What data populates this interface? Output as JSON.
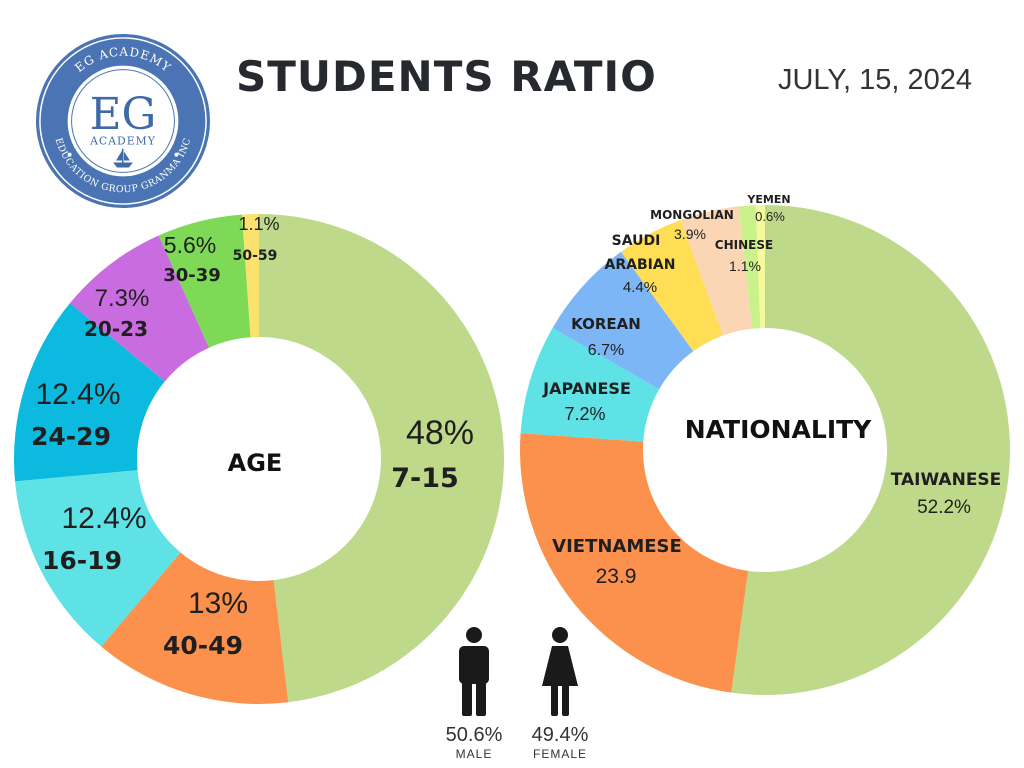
{
  "header": {
    "title": "STUDENTS RATIO",
    "date": "JULY, 15, 2024"
  },
  "logo": {
    "ring_top_text": "EG ACADEMY",
    "ring_bottom_text": "EDUCATION GROUP GRANMA INC",
    "monogram": "EG",
    "subtitle": "ACADEMY",
    "color": "#3f6aa8"
  },
  "gender": {
    "male": {
      "pct": "50.6%",
      "label": "MALE",
      "value": 50.6
    },
    "female": {
      "pct": "49.4%",
      "label": "FEMALE",
      "value": 49.4
    }
  },
  "chart_data": [
    {
      "type": "pie",
      "donut": true,
      "center_label": "AGE",
      "slices": [
        {
          "label": "7-15",
          "value_label": "48%",
          "value": 48,
          "color": "#bfd98a"
        },
        {
          "label": "40-49",
          "value_label": "13%",
          "value": 13,
          "color": "#fb914c"
        },
        {
          "label": "16-19",
          "value_label": "12.4%",
          "value": 12.4,
          "color": "#5ee2e6"
        },
        {
          "label": "24-29",
          "value_label": "12.4%",
          "value": 12.4,
          "color": "#0bbade"
        },
        {
          "label": "20-23",
          "value_label": "7.3%",
          "value": 7.3,
          "color": "#c86ce0"
        },
        {
          "label": "30-39",
          "value_label": "5.6%",
          "value": 5.6,
          "color": "#7ed957"
        },
        {
          "label": "50-59",
          "value_label": "1.1%",
          "value": 1.1,
          "color": "#fbe26c"
        }
      ]
    },
    {
      "type": "pie",
      "donut": true,
      "center_label": "NATIONALITY",
      "slices": [
        {
          "label": "TAIWANESE",
          "value_label": "52.2%",
          "value": 52.2,
          "color": "#bfd98a"
        },
        {
          "label": "VIETNAMESE",
          "value_label": "23.9",
          "value": 23.9,
          "color": "#fb914c"
        },
        {
          "label": "JAPANESE",
          "value_label": "7.2%",
          "value": 7.2,
          "color": "#5ee2e6"
        },
        {
          "label": "KOREAN",
          "value_label": "6.7%",
          "value": 6.7,
          "color": "#7db6f7"
        },
        {
          "label": "SAUDI ARABIAN",
          "value_label": "4.4%",
          "value": 4.4,
          "color": "#ffdd55"
        },
        {
          "label": "MONGOLIAN",
          "value_label": "3.9%",
          "value": 3.9,
          "color": "#fbd6b4"
        },
        {
          "label": "CHINESE",
          "value_label": "1.1%",
          "value": 1.1,
          "color": "#c9f28a"
        },
        {
          "label": "YEMEN",
          "value_label": "0.6%",
          "value": 0.6,
          "color": "#f5f99a"
        }
      ]
    }
  ]
}
